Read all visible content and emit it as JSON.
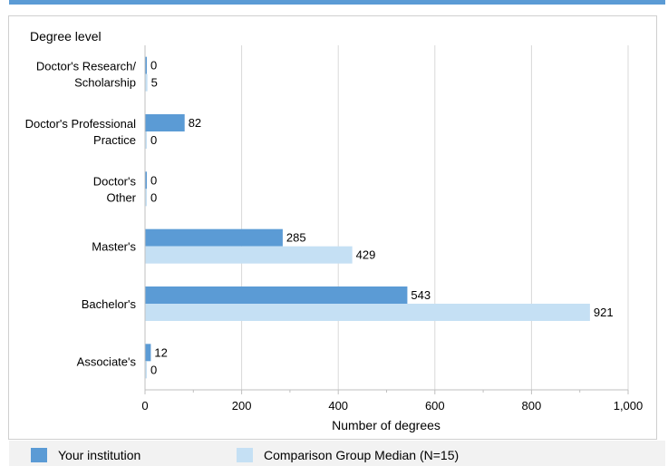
{
  "chart_data": {
    "type": "bar",
    "orientation": "horizontal",
    "title": "",
    "ylabel": "Degree level",
    "xlabel": "Number of degrees",
    "xlim": [
      0,
      1000
    ],
    "xticks": [
      "0",
      "200",
      "400",
      "600",
      "800",
      "1,000"
    ],
    "grid": true,
    "legend_position": "bottom",
    "categories": [
      [
        "Doctor's Research/",
        "Scholarship"
      ],
      [
        "Doctor's Professional",
        "Practice"
      ],
      [
        "Doctor's",
        "Other"
      ],
      [
        "Master's"
      ],
      [
        "Bachelor's"
      ],
      [
        "Associate's"
      ]
    ],
    "series": [
      {
        "name": "Your institution",
        "color": "#5b9bd5",
        "values": [
          0,
          82,
          0,
          285,
          543,
          12
        ]
      },
      {
        "name": "Comparison Group Median (N=15)",
        "color": "#c5e0f4",
        "values": [
          5,
          0,
          0,
          429,
          921,
          0
        ]
      }
    ]
  }
}
